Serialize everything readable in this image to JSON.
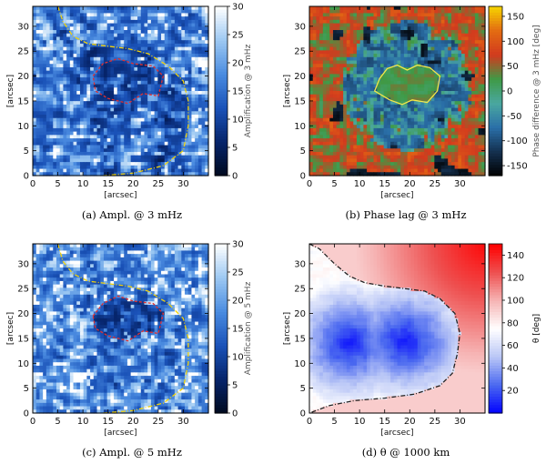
{
  "figure": {
    "panels": 4
  },
  "chart_data": [
    {
      "id": "a",
      "type": "heatmap",
      "caption": "(a) Ampl. @ 3 mHz",
      "xlabel": "[arcsec]",
      "ylabel": "[arcsec]",
      "xlim": [
        0,
        35
      ],
      "ylim": [
        0,
        34
      ],
      "xticks": [
        0,
        5,
        10,
        15,
        20,
        25,
        30
      ],
      "yticks": [
        0,
        5,
        10,
        15,
        20,
        25,
        30
      ],
      "colorbar": {
        "label": "Amplification @ 3 mHz",
        "range": [
          0,
          30
        ],
        "ticks": [
          0,
          5,
          10,
          15,
          20,
          25,
          30
        ],
        "colormap": [
          "#000a1e",
          "#06246a",
          "#1a52b8",
          "#4a8be0",
          "#9cc8f2",
          "#ffffff"
        ]
      },
      "contours": [
        {
          "name": "umbra boundary",
          "color": "#e03030",
          "style": "dashed",
          "points": [
            [
              12,
              20
            ],
            [
              14,
              22.5
            ],
            [
              17,
              23.5
            ],
            [
              20,
              22.5
            ],
            [
              24,
              22
            ],
            [
              26,
              20
            ],
            [
              25,
              16
            ],
            [
              22,
              16.5
            ],
            [
              19,
              14.5
            ],
            [
              15,
              15.5
            ],
            [
              12.5,
              17
            ]
          ]
        },
        {
          "name": "penumbra boundary",
          "color": "#f2d20a",
          "style": "dash-dot",
          "points": [
            [
              5,
              34
            ],
            [
              6,
              31
            ],
            [
              8,
              28
            ],
            [
              11,
              26.5
            ],
            [
              15,
              26
            ],
            [
              19,
              25.5
            ],
            [
              23,
              24.5
            ],
            [
              27,
              22
            ],
            [
              30,
              19
            ],
            [
              31,
              15
            ],
            [
              31,
              10
            ],
            [
              30,
              5
            ],
            [
              26,
              2
            ],
            [
              20,
              0.5
            ],
            [
              14,
              0
            ]
          ]
        }
      ]
    },
    {
      "id": "b",
      "type": "heatmap",
      "caption": "(b) Phase lag @ 3 mHz",
      "xlabel": "[arcsec]",
      "ylabel": "[arcsec]",
      "xlim": [
        0,
        35
      ],
      "ylim": [
        0,
        34
      ],
      "xticks": [
        0,
        5,
        10,
        15,
        20,
        25,
        30
      ],
      "yticks": [
        0,
        5,
        10,
        15,
        20,
        25,
        30
      ],
      "colorbar": {
        "label": "Phase difference @ 3 mHz [deg]",
        "range": [
          -170,
          170
        ],
        "ticks": [
          -150,
          -100,
          -50,
          0,
          50,
          100,
          150
        ],
        "colormap": [
          "#000000",
          "#14304f",
          "#2a6fa8",
          "#4aa7a0",
          "#3f9a46",
          "#d23a1e",
          "#e36b12",
          "#f5d400"
        ]
      },
      "contours": [
        {
          "name": "umbra boundary",
          "color": "#f6e84a",
          "style": "solid",
          "points": [
            [
              13,
              17
            ],
            [
              14,
              19.5
            ],
            [
              15.5,
              21.5
            ],
            [
              17.5,
              22.2
            ],
            [
              19.5,
              21.2
            ],
            [
              21.5,
              22.2
            ],
            [
              24,
              21.7
            ],
            [
              26,
              20
            ],
            [
              25.5,
              17
            ],
            [
              23.5,
              14.7
            ],
            [
              20.5,
              15.2
            ],
            [
              18.5,
              14.3
            ],
            [
              16,
              15.2
            ]
          ]
        }
      ]
    },
    {
      "id": "c",
      "type": "heatmap",
      "caption": "(c) Ampl. @ 5 mHz",
      "xlabel": "[arcsec]",
      "ylabel": "[arcsec]",
      "xlim": [
        0,
        35
      ],
      "ylim": [
        0,
        34
      ],
      "xticks": [
        0,
        5,
        10,
        15,
        20,
        25,
        30
      ],
      "yticks": [
        0,
        5,
        10,
        15,
        20,
        25,
        30
      ],
      "colorbar": {
        "label": "Amplification @ 5 mHz",
        "range": [
          0,
          30
        ],
        "ticks": [
          0,
          5,
          10,
          15,
          20,
          25,
          30
        ],
        "colormap": [
          "#000a1e",
          "#06246a",
          "#1a52b8",
          "#4a8be0",
          "#9cc8f2",
          "#ffffff"
        ]
      },
      "contours": [
        {
          "name": "umbra boundary",
          "color": "#e03030",
          "style": "dashed",
          "points": [
            [
              12,
              19.5
            ],
            [
              14,
              22
            ],
            [
              17,
              23.5
            ],
            [
              20,
              22.5
            ],
            [
              24,
              22
            ],
            [
              26,
              20
            ],
            [
              25,
              16
            ],
            [
              22,
              16.5
            ],
            [
              19,
              14.5
            ],
            [
              15,
              15.5
            ],
            [
              12.5,
              17
            ]
          ]
        },
        {
          "name": "penumbra boundary",
          "color": "#f2d20a",
          "style": "dash-dot",
          "points": [
            [
              5,
              34
            ],
            [
              6,
              30.5
            ],
            [
              8,
              28
            ],
            [
              11,
              26.5
            ],
            [
              15,
              26
            ],
            [
              19,
              25.5
            ],
            [
              23,
              24.5
            ],
            [
              27,
              22
            ],
            [
              30,
              19
            ],
            [
              31,
              15
            ],
            [
              31,
              10
            ],
            [
              30,
              5
            ],
            [
              26,
              2
            ],
            [
              20,
              0.5
            ],
            [
              14,
              0
            ]
          ]
        }
      ]
    },
    {
      "id": "d",
      "type": "heatmap",
      "caption": "(d) θ @ 1000 km",
      "xlabel": "[arcsec]",
      "ylabel": "[arcsec]",
      "xlim": [
        0,
        35
      ],
      "ylim": [
        0,
        34
      ],
      "xticks": [
        0,
        5,
        10,
        15,
        20,
        25,
        30
      ],
      "yticks": [
        0,
        5,
        10,
        15,
        20,
        25,
        30
      ],
      "colorbar": {
        "label": "θ [deg]",
        "range": [
          0,
          150
        ],
        "ticks": [
          20,
          40,
          60,
          80,
          100,
          120,
          140
        ],
        "colormap": [
          "#0000ff",
          "#4a68f0",
          "#b9c6f6",
          "#ffffff",
          "#f6b4b4",
          "#ee5050",
          "#ff0000"
        ]
      },
      "contours": [
        {
          "name": "θ = 90° boundary",
          "color": "#222222",
          "style": "dash-dot",
          "points": [
            [
              0,
              34
            ],
            [
              2,
              33
            ],
            [
              5,
              30
            ],
            [
              8,
              27.5
            ],
            [
              11,
              26.2
            ],
            [
              15,
              25.5
            ],
            [
              19,
              25
            ],
            [
              23,
              24.5
            ],
            [
              26,
              23
            ],
            [
              29,
              20
            ],
            [
              30,
              16
            ],
            [
              29.5,
              12
            ],
            [
              28.5,
              8
            ],
            [
              26,
              5.5
            ],
            [
              21,
              3.8
            ],
            [
              15,
              3
            ],
            [
              9,
              2.5
            ],
            [
              4,
              1.5
            ],
            [
              0,
              0
            ]
          ]
        }
      ]
    }
  ]
}
